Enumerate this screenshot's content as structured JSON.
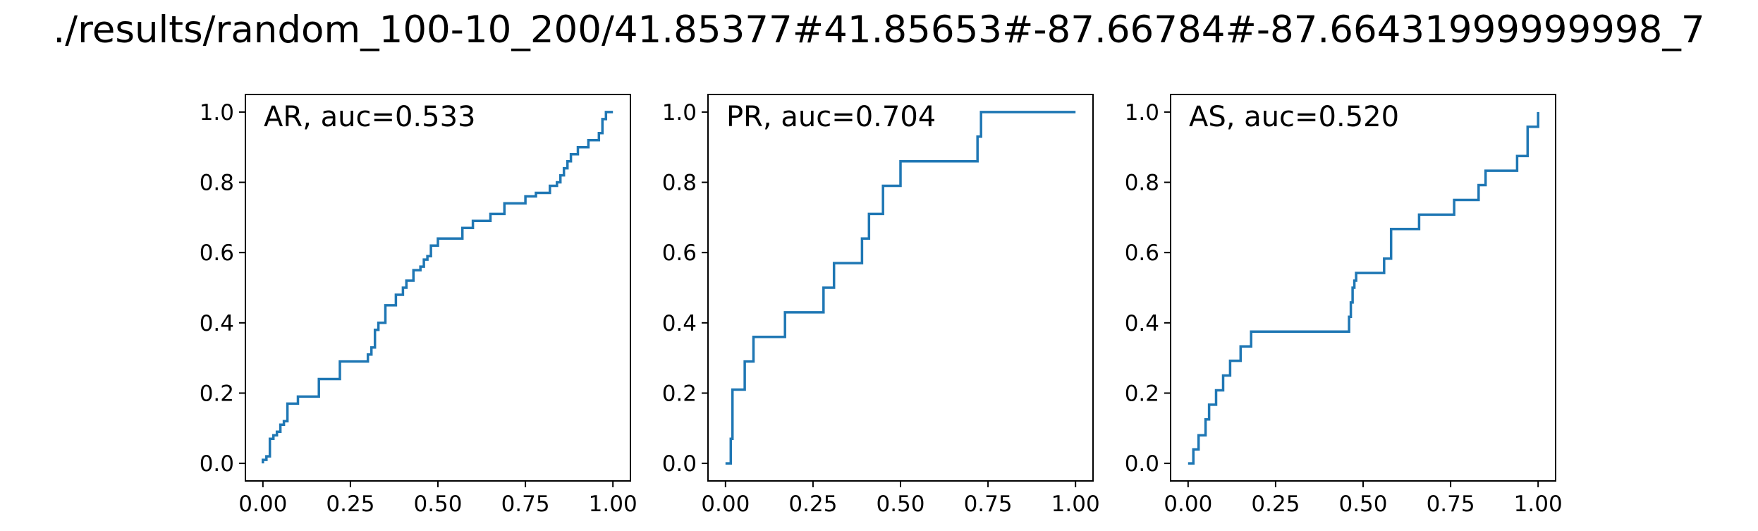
{
  "figure": {
    "title": "./results/random_100-10_200/41.85377#41.85653#-87.66784#-87.66431999999998_7"
  },
  "colors": {
    "line": "#1f77b4",
    "axes": "#000000"
  },
  "chart_data": [
    {
      "type": "line",
      "title": "AR, auc=0.533",
      "xlim": [
        -0.05,
        1.05
      ],
      "ylim": [
        -0.05,
        1.05
      ],
      "xticks": [
        0.0,
        0.25,
        0.5,
        0.75,
        1.0
      ],
      "xtick_labels": [
        "0.00",
        "0.25",
        "0.50",
        "0.75",
        "1.00"
      ],
      "yticks": [
        0.0,
        0.2,
        0.4,
        0.6,
        0.8,
        1.0
      ],
      "ytick_labels": [
        "0.0",
        "0.2",
        "0.4",
        "0.6",
        "0.8",
        "1.0"
      ],
      "grid": false,
      "series": [
        {
          "x": [
            0,
            0,
            0.01,
            0.01,
            0.02,
            0.02,
            0.03,
            0.03,
            0.04,
            0.04,
            0.05,
            0.05,
            0.06,
            0.06,
            0.07,
            0.07,
            0.1,
            0.1,
            0.16,
            0.16,
            0.22,
            0.22,
            0.3,
            0.3,
            0.31,
            0.31,
            0.32,
            0.32,
            0.33,
            0.33,
            0.35,
            0.35,
            0.38,
            0.38,
            0.4,
            0.4,
            0.41,
            0.41,
            0.43,
            0.43,
            0.45,
            0.45,
            0.46,
            0.46,
            0.47,
            0.47,
            0.48,
            0.48,
            0.5,
            0.5,
            0.57,
            0.57,
            0.6,
            0.6,
            0.65,
            0.65,
            0.69,
            0.69,
            0.75,
            0.75,
            0.78,
            0.78,
            0.82,
            0.82,
            0.84,
            0.84,
            0.85,
            0.85,
            0.86,
            0.86,
            0.87,
            0.87,
            0.88,
            0.88,
            0.9,
            0.9,
            0.93,
            0.93,
            0.96,
            0.96,
            0.97,
            0.97,
            0.98,
            0.98,
            1.0
          ],
          "y": [
            0,
            0.01,
            0.01,
            0.02,
            0.02,
            0.07,
            0.07,
            0.08,
            0.08,
            0.09,
            0.09,
            0.11,
            0.11,
            0.12,
            0.12,
            0.17,
            0.17,
            0.19,
            0.19,
            0.24,
            0.24,
            0.29,
            0.29,
            0.31,
            0.31,
            0.33,
            0.33,
            0.38,
            0.38,
            0.4,
            0.4,
            0.45,
            0.45,
            0.48,
            0.48,
            0.5,
            0.5,
            0.52,
            0.52,
            0.55,
            0.55,
            0.56,
            0.56,
            0.58,
            0.58,
            0.59,
            0.59,
            0.62,
            0.62,
            0.64,
            0.64,
            0.67,
            0.67,
            0.69,
            0.69,
            0.71,
            0.71,
            0.74,
            0.74,
            0.76,
            0.76,
            0.77,
            0.77,
            0.79,
            0.79,
            0.8,
            0.8,
            0.82,
            0.82,
            0.84,
            0.84,
            0.86,
            0.86,
            0.88,
            0.88,
            0.9,
            0.9,
            0.92,
            0.92,
            0.94,
            0.94,
            0.98,
            0.98,
            1.0,
            1.0
          ]
        }
      ]
    },
    {
      "type": "line",
      "title": "PR, auc=0.704",
      "xlim": [
        -0.05,
        1.05
      ],
      "ylim": [
        -0.05,
        1.05
      ],
      "xticks": [
        0.0,
        0.25,
        0.5,
        0.75,
        1.0
      ],
      "xtick_labels": [
        "0.00",
        "0.25",
        "0.50",
        "0.75",
        "1.00"
      ],
      "yticks": [
        0.0,
        0.2,
        0.4,
        0.6,
        0.8,
        1.0
      ],
      "ytick_labels": [
        "0.0",
        "0.2",
        "0.4",
        "0.6",
        "0.8",
        "1.0"
      ],
      "grid": false,
      "series": [
        {
          "x": [
            0,
            0.015,
            0.015,
            0.02,
            0.02,
            0.055,
            0.055,
            0.08,
            0.08,
            0.17,
            0.17,
            0.28,
            0.28,
            0.31,
            0.31,
            0.39,
            0.39,
            0.41,
            0.41,
            0.45,
            0.45,
            0.5,
            0.5,
            0.72,
            0.72,
            0.73,
            0.73,
            1.0
          ],
          "y": [
            0,
            0,
            0.07,
            0.07,
            0.21,
            0.21,
            0.29,
            0.29,
            0.36,
            0.36,
            0.43,
            0.43,
            0.5,
            0.5,
            0.57,
            0.57,
            0.64,
            0.64,
            0.71,
            0.71,
            0.79,
            0.79,
            0.86,
            0.86,
            0.93,
            0.93,
            1.0,
            1.0
          ]
        }
      ]
    },
    {
      "type": "line",
      "title": "AS, auc=0.520",
      "xlim": [
        -0.05,
        1.05
      ],
      "ylim": [
        -0.05,
        1.05
      ],
      "xticks": [
        0.0,
        0.25,
        0.5,
        0.75,
        1.0
      ],
      "xtick_labels": [
        "0.00",
        "0.25",
        "0.50",
        "0.75",
        "1.00"
      ],
      "yticks": [
        0.0,
        0.2,
        0.4,
        0.6,
        0.8,
        1.0
      ],
      "ytick_labels": [
        "0.0",
        "0.2",
        "0.4",
        "0.6",
        "0.8",
        "1.0"
      ],
      "grid": false,
      "series": [
        {
          "x": [
            0,
            0.015,
            0.015,
            0.03,
            0.03,
            0.05,
            0.05,
            0.06,
            0.06,
            0.08,
            0.08,
            0.1,
            0.1,
            0.12,
            0.12,
            0.15,
            0.15,
            0.18,
            0.18,
            0.23,
            0.23,
            0.46,
            0.46,
            0.465,
            0.465,
            0.47,
            0.47,
            0.475,
            0.475,
            0.48,
            0.48,
            0.48,
            0.48,
            0.56,
            0.56,
            0.58,
            0.58,
            0.66,
            0.66,
            0.76,
            0.76,
            0.83,
            0.83,
            0.85,
            0.85,
            0.94,
            0.94,
            0.97,
            0.97,
            1.0,
            1.0
          ],
          "y": [
            0,
            0,
            0.04,
            0.04,
            0.08,
            0.08,
            0.125,
            0.125,
            0.167,
            0.167,
            0.208,
            0.208,
            0.25,
            0.25,
            0.292,
            0.292,
            0.333,
            0.333,
            0.375,
            0.375,
            0.375,
            0.375,
            0.417,
            0.417,
            0.458,
            0.458,
            0.5,
            0.5,
            0.52,
            0.52,
            0.542,
            0.542,
            0.542,
            0.542,
            0.583,
            0.583,
            0.667,
            0.667,
            0.708,
            0.708,
            0.75,
            0.75,
            0.792,
            0.792,
            0.833,
            0.833,
            0.875,
            0.875,
            0.958,
            0.958,
            1.0
          ]
        }
      ]
    }
  ]
}
